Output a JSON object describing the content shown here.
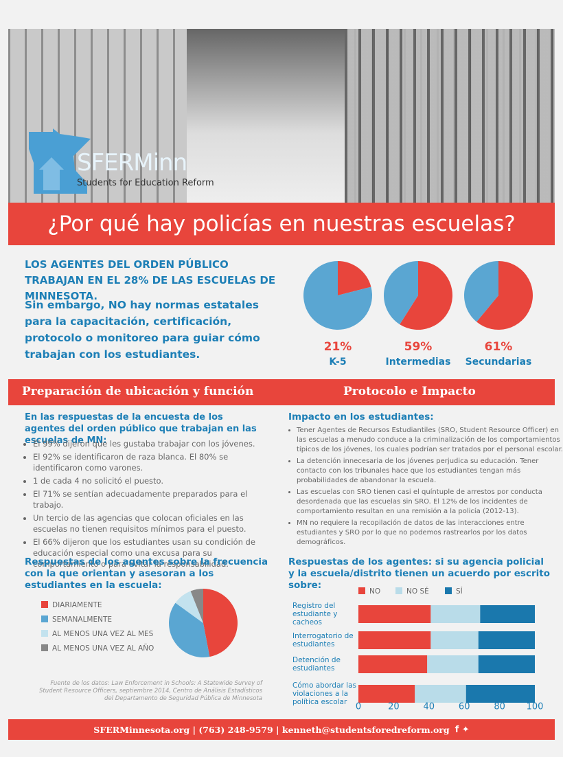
{
  "header": {
    "logo": "SFERMinn",
    "logo_subtitle": "Students for Education Reform",
    "title": "¿Por qué hay policías en nuestras escuelas?"
  },
  "intro": {
    "headline": "LOS AGENTES DEL ORDEN PÚBLICO TRABAJAN EN EL 28% DE LAS ESCUELAS DE MINNESOTA.",
    "text": "Sin embargo, NO hay normas estatales para la capacitación, certificación, protocolo o monitoreo para guiar cómo trabajan con los estudiantes."
  },
  "sections": {
    "left": "Preparación de ubicación y función",
    "right": "Protocolo e Impacto"
  },
  "left": {
    "heading": "En las respuestas de la encuesta de los agentes del orden público que trabajan en las escuelas de MN:",
    "bullets": [
      "El 99% dijeron que les gustaba trabajar con los jóvenes.",
      "El 92% se identificaron de raza blanca. El 80% se identificaron como varones.",
      "1 de cada 4 no solicitó el puesto.",
      "El 71% se sentían adecuadamente preparados para el trabajo.",
      "Un tercio de las agencias que colocan oficiales en las escuelas no tienen requisitos mínimos para el puesto.",
      "El 66% dijeron que los estudiantes usan su condición de educación especial como una excusa para su comportamiento o para evitar la responsabilidad."
    ],
    "source": "Fuente de los datos: Law Enforcement in Schools: A Statewide Survey of Student Resource Officers, septiembre 2014, Centro de Análisis Estadísticos del Departamento de Seguridad Pública de Minnesota"
  },
  "right": {
    "heading": "Impacto en los estudiantes:",
    "bullets": [
      "Tener Agentes de Recursos Estudiantiles (SRO, Student Resource Officer) en las escuelas a menudo conduce a la criminalización de los comportamientos típicos de los jóvenes, los cuales podrían ser tratados por el personal escolar.",
      "La detención innecesaria de los jóvenes perjudica su educación. Tener contacto con los tribunales hace que los estudiantes tengan más probabilidades de abandonar la escuela.",
      "Las escuelas con SRO tienen casi el quíntuple de arrestos por conducta desordenada que las escuelas sin SRO. El 12% de los incidentes de comportamiento resultan en una remisión a la policía (2012-13).",
      "MN no requiere la recopilación de datos de las interacciones entre estudiantes y SRO por lo que no podemos rastrearlos por los datos demográficos."
    ]
  },
  "footer": "SFERMinnesota.org | (763) 248-9579 | kenneth@studentsforedreform.org",
  "chart_data": [
    {
      "type": "pie",
      "title": "K-5",
      "values": [
        21
      ],
      "value_labels": [
        "21%"
      ],
      "colors": [
        "#e8453c"
      ],
      "rest_color": "#5aa6d2"
    },
    {
      "type": "pie",
      "title": "Intermedias",
      "values": [
        59
      ],
      "value_labels": [
        "59%"
      ],
      "colors": [
        "#e8453c"
      ],
      "rest_color": "#5aa6d2"
    },
    {
      "type": "pie",
      "title": "Secundarias",
      "values": [
        61
      ],
      "value_labels": [
        "61%"
      ],
      "colors": [
        "#e8453c"
      ],
      "rest_color": "#5aa6d2"
    },
    {
      "type": "pie",
      "title": "Respuestas de los agentes sobre la frecuencia con la que orientan y asesoran a los estudiantes en la escuela:",
      "categories": [
        "DIARIAMENTE",
        "SEMANALMENTE",
        "AL MENOS UNA VEZ AL MES",
        "AL MENOS UNA VEZ AL AÑO"
      ],
      "values": [
        47,
        38,
        9,
        6
      ],
      "colors": [
        "#e8453c",
        "#5aa6d2",
        "#c3e2ee",
        "#888888"
      ],
      "legend": "left"
    },
    {
      "type": "bar",
      "orientation": "horizontal",
      "stacked": true,
      "title": "Respuestas de los agentes: si su agencia policial y la escuela/distrito tienen un acuerdo por escrito sobre:",
      "categories": [
        "Registro del estudiante y cacheos",
        "Interrogatorio de estudiantes",
        "Detención de estudiantes",
        "Cómo abordar las violaciones a la política escolar"
      ],
      "series": [
        {
          "name": "NO",
          "color": "#e8453c",
          "values": [
            41,
            41,
            39,
            32
          ]
        },
        {
          "name": "NO SÉ",
          "color": "#b9dce9",
          "values": [
            28,
            27,
            29,
            29
          ]
        },
        {
          "name": "SÍ",
          "color": "#1a78ad",
          "values": [
            31,
            32,
            32,
            39
          ]
        }
      ],
      "xlim": [
        0,
        100
      ],
      "xticks": [
        0,
        20,
        40,
        60,
        80,
        100
      ],
      "legend": "top"
    }
  ]
}
